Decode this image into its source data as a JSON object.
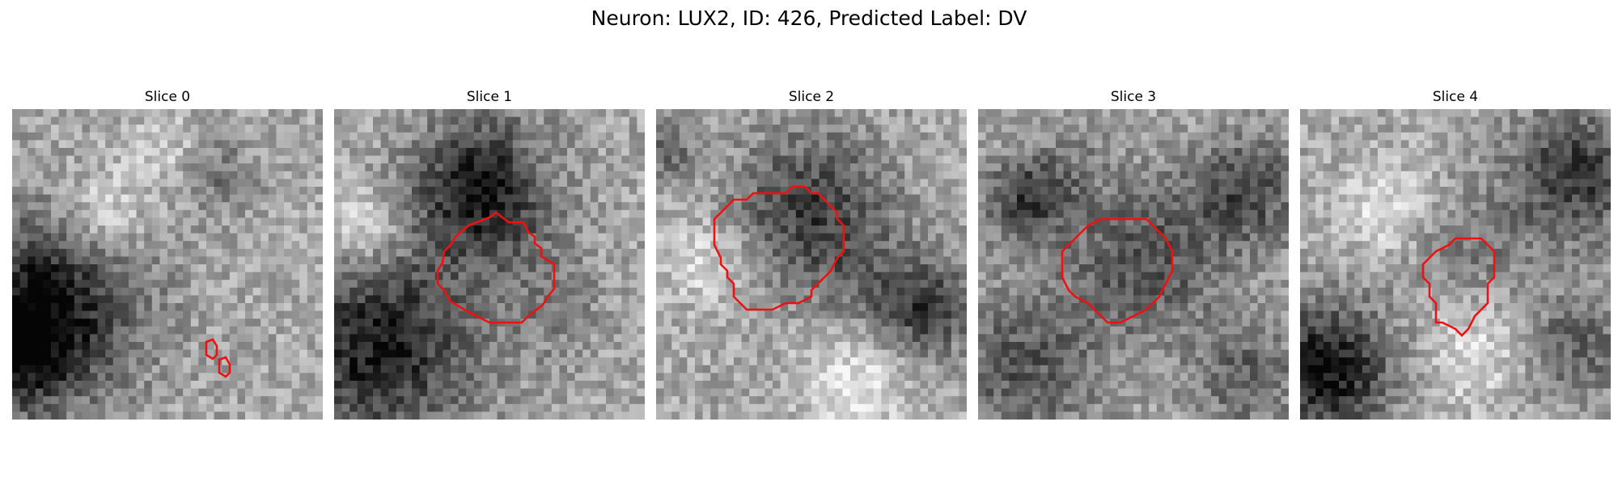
{
  "figure": {
    "title": "Neuron: LUX2, ID: 426, Predicted Label: DV"
  },
  "panels": [
    {
      "title": "Slice 0",
      "seed": 11,
      "blobs": [
        [
          4,
          25,
          8.5,
          0.58
        ],
        [
          0,
          31,
          5,
          0.35
        ],
        [
          19,
          5,
          3.5,
          -0.15
        ],
        [
          26,
          8,
          3.5,
          0.2
        ],
        [
          11,
          13,
          4,
          -0.25
        ]
      ]
    },
    {
      "title": "Slice 1",
      "seed": 23,
      "blobs": [
        [
          19,
          10,
          6.5,
          0.58
        ],
        [
          5,
          30,
          9,
          0.55
        ],
        [
          3,
          15,
          4,
          -0.28
        ],
        [
          28,
          25,
          4.5,
          0.15
        ],
        [
          26,
          8,
          3,
          -0.12
        ]
      ]
    },
    {
      "title": "Slice 2",
      "seed": 37,
      "blobs": [
        [
          19.5,
          12.5,
          7,
          0.42
        ],
        [
          26,
          22,
          5,
          0.12
        ],
        [
          34,
          25,
          4.5,
          0.42
        ],
        [
          6,
          19,
          4,
          -0.22
        ],
        [
          25,
          35,
          5,
          -0.25
        ],
        [
          1,
          5,
          2.5,
          0.25
        ]
      ]
    },
    {
      "title": "Slice 3",
      "seed": 53,
      "blobs": [
        [
          21,
          19,
          7,
          0.35
        ],
        [
          6,
          11,
          4,
          0.42
        ],
        [
          34,
          10,
          5,
          0.38
        ],
        [
          5,
          33,
          7,
          0.32
        ],
        [
          12,
          6,
          4,
          0.1
        ],
        [
          34,
          34,
          5,
          0.28
        ]
      ]
    },
    {
      "title": "Slice 4",
      "seed": 71,
      "blobs": [
        [
          21.5,
          17.5,
          5,
          0.18
        ],
        [
          3,
          33,
          6,
          0.6
        ],
        [
          35,
          8,
          6,
          0.45
        ],
        [
          35,
          30,
          5,
          0.28
        ],
        [
          10,
          12,
          4,
          -0.22
        ],
        [
          22,
          31,
          5,
          -0.22
        ]
      ]
    }
  ]
}
